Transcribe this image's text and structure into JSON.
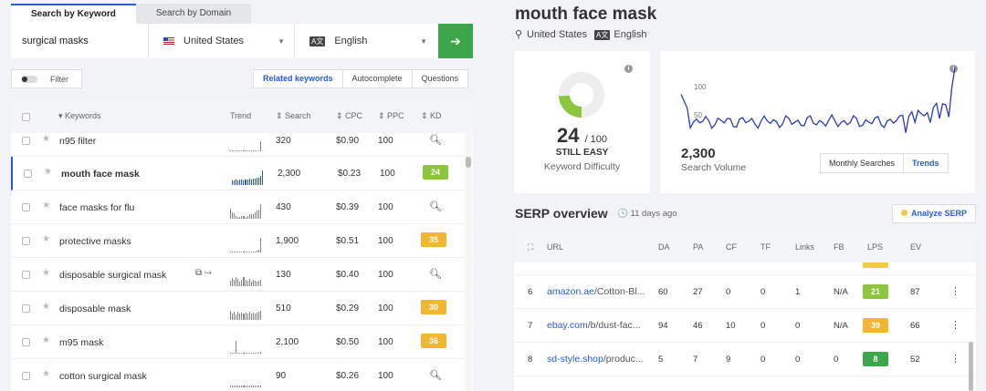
{
  "left": {
    "tabs": [
      {
        "label": "Search by Keyword",
        "active": true
      },
      {
        "label": "Search by Domain",
        "active": false
      }
    ],
    "search": {
      "value": "surgical masks",
      "country": "United States",
      "language": "English",
      "go_icon": "arrow-right-icon"
    },
    "filter_label": "Filter",
    "seg_tabs": [
      {
        "label": "Related keywords",
        "active": true
      },
      {
        "label": "Autocomplete",
        "active": false
      },
      {
        "label": "Questions",
        "active": false
      }
    ],
    "columns": {
      "keywords": "Keywords",
      "trend": "Trend",
      "search": "Search",
      "cpc": "CPC",
      "ppc": "PPC",
      "kd": "KD"
    },
    "rows": [
      {
        "keyword": "n95 filter",
        "search": "320",
        "cpc": "$0.90",
        "ppc": "100",
        "kd": null,
        "trend": [
          0,
          0,
          0,
          0,
          0,
          0,
          0,
          0,
          0,
          0,
          0,
          0,
          0,
          0,
          0,
          0,
          10
        ]
      },
      {
        "keyword": "mouth face mask",
        "search": "2,300",
        "cpc": "$0.23",
        "ppc": "100",
        "kd": "24",
        "kd_color": "#8cc63f",
        "selected": true,
        "trend": [
          4,
          4,
          5,
          4,
          5,
          5,
          4,
          5,
          5,
          6,
          5,
          6,
          6,
          7,
          7,
          9,
          14
        ]
      },
      {
        "keyword": "face masks for flu",
        "search": "430",
        "cpc": "$0.39",
        "ppc": "100",
        "kd": null,
        "trend": [
          10,
          6,
          5,
          3,
          2,
          2,
          3,
          3,
          2,
          3,
          4,
          4,
          4,
          6,
          8,
          9,
          14
        ]
      },
      {
        "keyword": "protective masks",
        "search": "1,900",
        "cpc": "$0.51",
        "ppc": "100",
        "kd": "35",
        "kd_color": "#f2b632",
        "trend": [
          1,
          1,
          1,
          1,
          1,
          1,
          1,
          1,
          1,
          1,
          1,
          1,
          1,
          1,
          2,
          3,
          14
        ]
      },
      {
        "keyword": "disposable surgical mask",
        "search": "130",
        "cpc": "$0.40",
        "ppc": "100",
        "kd": null,
        "trend": [
          5,
          8,
          6,
          9,
          7,
          4,
          6,
          9,
          6,
          5,
          7,
          4,
          6,
          5,
          4,
          5,
          6
        ],
        "has_icons": true
      },
      {
        "keyword": "disposable mask",
        "search": "510",
        "cpc": "$0.29",
        "ppc": "100",
        "kd": "30",
        "kd_color": "#f2b632",
        "trend": [
          9,
          6,
          8,
          5,
          8,
          6,
          7,
          6,
          7,
          6,
          8,
          6,
          7,
          6,
          7,
          8,
          9
        ]
      },
      {
        "keyword": "m95 mask",
        "search": "2,100",
        "cpc": "$0.50",
        "ppc": "100",
        "kd": "36",
        "kd_color": "#f2b632",
        "trend": [
          1,
          1,
          1,
          12,
          1,
          1,
          1,
          1,
          1,
          1,
          1,
          1,
          1,
          1,
          1,
          1,
          2
        ]
      },
      {
        "keyword": "cotton surgical mask",
        "search": "90",
        "cpc": "$0.26",
        "ppc": "100",
        "kd": null,
        "trend": [
          2,
          2,
          2,
          2,
          2,
          2,
          2,
          2,
          2,
          2,
          2,
          2,
          2,
          2,
          2,
          2,
          2
        ]
      }
    ]
  },
  "right": {
    "title": "mouth face mask",
    "location": "United States",
    "language": "English",
    "kd": {
      "value": "24",
      "out_of": "/ 100",
      "label": "STILL EASY",
      "sub": "Keyword Difficulty",
      "fraction": 0.24
    },
    "volume": {
      "value": "2,300",
      "sub": "Search Volume",
      "ticks": [
        "100",
        "50"
      ],
      "tabs": [
        "Monthly Searches",
        "Trends"
      ]
    },
    "serp": {
      "title": "SERP overview",
      "ago": "11 days ago",
      "analyze": "Analyze SERP",
      "columns": [
        "URL",
        "DA",
        "PA",
        "CF",
        "TF",
        "Links",
        "FB",
        "LPS",
        "EV"
      ],
      "rows": [
        {
          "n": "6",
          "domain": "amazon.ae",
          "path": "/Cotton-Bl...",
          "da": "60",
          "pa": "27",
          "cf": "0",
          "tf": "0",
          "links": "1",
          "fb": "N/A",
          "lps": "21",
          "lps_color": "#8cc63f",
          "ev": "87"
        },
        {
          "n": "7",
          "domain": "ebay.com",
          "path": "/b/dust-fac...",
          "da": "94",
          "pa": "46",
          "cf": "10",
          "tf": "0",
          "links": "0",
          "fb": "N/A",
          "lps": "39",
          "lps_color": "#f2b632",
          "ev": "66"
        },
        {
          "n": "8",
          "domain": "sd-style.shop",
          "path": "/produc...",
          "da": "5",
          "pa": "7",
          "cf": "9",
          "tf": "0",
          "links": "0",
          "fb": "0",
          "lps": "8",
          "lps_color": "#3ca64a",
          "ev": "52"
        }
      ]
    }
  }
}
